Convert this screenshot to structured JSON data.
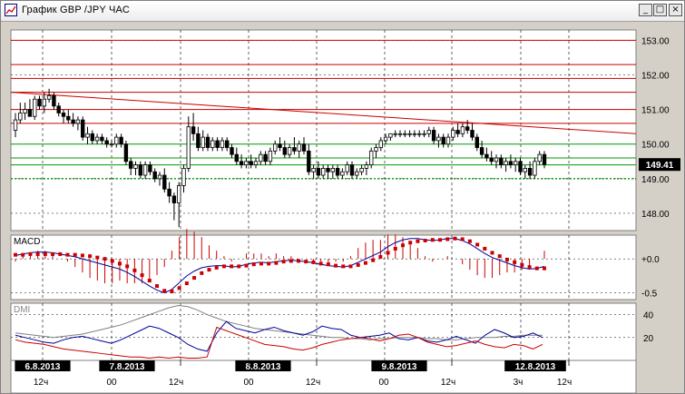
{
  "window": {
    "title": "График GBP /JPY  ЧАС",
    "minimize_glyph": "_",
    "maximize_glyph": "□",
    "close_glyph": "×"
  },
  "colors": {
    "background": "#ffffff",
    "frame": "#d4d0c8",
    "candle": "#000000",
    "resistance": "#cc0000",
    "support": "#009900",
    "macd_line": "#000099",
    "macd_signal": "#cc0000",
    "dmi_plus": "#000099",
    "dmi_minus": "#cc0000",
    "adx": "#808080"
  },
  "chart_data": [
    {
      "type": "candlestick",
      "title": "",
      "panel": "price",
      "ylim": [
        147.5,
        153.3
      ],
      "y_ticks": [
        "153.00",
        "152.00",
        "151.00",
        "150.00",
        "149.00",
        "148.00"
      ],
      "current_price_label": "149.41",
      "current_price": 149.41,
      "horizontal_levels": {
        "resistance": [
          153.0,
          152.3,
          151.9,
          151.5,
          151.0,
          150.6
        ],
        "support": [
          150.0,
          149.6,
          149.4
        ],
        "dotted_support": [
          149.0
        ]
      },
      "trendline": {
        "from_index": 0,
        "from_value": 151.5,
        "to_index": 118,
        "to_value": 150.3
      },
      "candles": [
        {
          "o": 150.4,
          "h": 150.9,
          "l": 150.2,
          "c": 150.7
        },
        {
          "o": 150.7,
          "h": 151.2,
          "l": 150.6,
          "c": 150.9
        },
        {
          "o": 150.9,
          "h": 151.2,
          "l": 150.7,
          "c": 151.0
        },
        {
          "o": 151.0,
          "h": 151.3,
          "l": 150.8,
          "c": 150.8
        },
        {
          "o": 150.8,
          "h": 151.4,
          "l": 150.7,
          "c": 151.3
        },
        {
          "o": 151.3,
          "h": 151.4,
          "l": 151.0,
          "c": 151.1
        },
        {
          "o": 151.1,
          "h": 151.5,
          "l": 150.9,
          "c": 151.3
        },
        {
          "o": 151.3,
          "h": 151.6,
          "l": 151.2,
          "c": 151.4
        },
        {
          "o": 151.4,
          "h": 151.5,
          "l": 151.0,
          "c": 151.1
        },
        {
          "o": 151.1,
          "h": 151.2,
          "l": 150.8,
          "c": 150.9
        },
        {
          "o": 150.9,
          "h": 151.0,
          "l": 150.6,
          "c": 150.8
        },
        {
          "o": 150.8,
          "h": 151.0,
          "l": 150.6,
          "c": 150.7
        },
        {
          "o": 150.7,
          "h": 150.9,
          "l": 150.5,
          "c": 150.6
        },
        {
          "o": 150.6,
          "h": 150.8,
          "l": 150.4,
          "c": 150.7
        },
        {
          "o": 150.7,
          "h": 150.8,
          "l": 150.1,
          "c": 150.2
        },
        {
          "o": 150.2,
          "h": 150.5,
          "l": 150.0,
          "c": 150.3
        },
        {
          "o": 150.3,
          "h": 150.4,
          "l": 150.0,
          "c": 150.1
        },
        {
          "o": 150.1,
          "h": 150.3,
          "l": 150.0,
          "c": 150.2
        },
        {
          "o": 150.2,
          "h": 150.3,
          "l": 150.0,
          "c": 150.1
        },
        {
          "o": 150.1,
          "h": 150.2,
          "l": 149.9,
          "c": 150.0
        },
        {
          "o": 150.0,
          "h": 150.1,
          "l": 149.9,
          "c": 150.0
        },
        {
          "o": 150.0,
          "h": 150.3,
          "l": 149.9,
          "c": 150.2
        },
        {
          "o": 150.2,
          "h": 150.3,
          "l": 149.9,
          "c": 150.0
        },
        {
          "o": 150.0,
          "h": 150.1,
          "l": 149.4,
          "c": 149.5
        },
        {
          "o": 149.5,
          "h": 149.6,
          "l": 149.1,
          "c": 149.3
        },
        {
          "o": 149.3,
          "h": 149.5,
          "l": 149.1,
          "c": 149.4
        },
        {
          "o": 149.4,
          "h": 149.5,
          "l": 149.0,
          "c": 149.1
        },
        {
          "o": 149.1,
          "h": 149.5,
          "l": 149.0,
          "c": 149.4
        },
        {
          "o": 149.4,
          "h": 149.5,
          "l": 149.1,
          "c": 149.2
        },
        {
          "o": 149.2,
          "h": 149.3,
          "l": 148.9,
          "c": 149.0
        },
        {
          "o": 149.0,
          "h": 149.2,
          "l": 148.8,
          "c": 149.1
        },
        {
          "o": 149.1,
          "h": 149.3,
          "l": 148.6,
          "c": 148.7
        },
        {
          "o": 148.7,
          "h": 148.9,
          "l": 148.3,
          "c": 148.5
        },
        {
          "o": 148.5,
          "h": 148.6,
          "l": 147.8,
          "c": 148.3
        },
        {
          "o": 148.3,
          "h": 148.9,
          "l": 147.6,
          "c": 148.8
        },
        {
          "o": 148.8,
          "h": 149.4,
          "l": 148.6,
          "c": 149.3
        },
        {
          "o": 149.3,
          "h": 150.8,
          "l": 149.2,
          "c": 150.5
        },
        {
          "o": 150.5,
          "h": 150.9,
          "l": 150.1,
          "c": 150.3
        },
        {
          "o": 150.3,
          "h": 150.5,
          "l": 149.8,
          "c": 149.9
        },
        {
          "o": 149.9,
          "h": 150.4,
          "l": 149.8,
          "c": 150.2
        },
        {
          "o": 150.2,
          "h": 150.3,
          "l": 149.8,
          "c": 149.9
        },
        {
          "o": 149.9,
          "h": 150.2,
          "l": 149.8,
          "c": 150.1
        },
        {
          "o": 150.1,
          "h": 150.2,
          "l": 149.8,
          "c": 149.9
        },
        {
          "o": 149.9,
          "h": 150.2,
          "l": 149.8,
          "c": 150.1
        },
        {
          "o": 150.1,
          "h": 150.2,
          "l": 149.8,
          "c": 149.9
        },
        {
          "o": 149.9,
          "h": 150.0,
          "l": 149.6,
          "c": 149.7
        },
        {
          "o": 149.7,
          "h": 149.9,
          "l": 149.4,
          "c": 149.5
        },
        {
          "o": 149.5,
          "h": 149.7,
          "l": 149.3,
          "c": 149.4
        },
        {
          "o": 149.4,
          "h": 149.6,
          "l": 149.3,
          "c": 149.5
        },
        {
          "o": 149.5,
          "h": 149.7,
          "l": 149.3,
          "c": 149.4
        },
        {
          "o": 149.4,
          "h": 149.6,
          "l": 149.3,
          "c": 149.5
        },
        {
          "o": 149.5,
          "h": 149.8,
          "l": 149.4,
          "c": 149.7
        },
        {
          "o": 149.7,
          "h": 149.8,
          "l": 149.4,
          "c": 149.5
        },
        {
          "o": 149.5,
          "h": 149.9,
          "l": 149.4,
          "c": 149.8
        },
        {
          "o": 149.8,
          "h": 150.1,
          "l": 149.7,
          "c": 150.0
        },
        {
          "o": 150.0,
          "h": 150.2,
          "l": 149.8,
          "c": 149.9
        },
        {
          "o": 149.9,
          "h": 150.1,
          "l": 149.6,
          "c": 149.7
        },
        {
          "o": 149.7,
          "h": 150.0,
          "l": 149.6,
          "c": 149.9
        },
        {
          "o": 149.9,
          "h": 150.2,
          "l": 149.7,
          "c": 149.8
        },
        {
          "o": 149.8,
          "h": 150.1,
          "l": 149.6,
          "c": 150.0
        },
        {
          "o": 150.0,
          "h": 150.2,
          "l": 149.7,
          "c": 149.8
        },
        {
          "o": 149.8,
          "h": 150.0,
          "l": 149.1,
          "c": 149.2
        },
        {
          "o": 149.2,
          "h": 149.4,
          "l": 149.0,
          "c": 149.3
        },
        {
          "o": 149.3,
          "h": 149.5,
          "l": 149.0,
          "c": 149.1
        },
        {
          "o": 149.1,
          "h": 149.4,
          "l": 149.0,
          "c": 149.3
        },
        {
          "o": 149.3,
          "h": 149.4,
          "l": 149.0,
          "c": 149.2
        },
        {
          "o": 149.2,
          "h": 149.4,
          "l": 149.0,
          "c": 149.3
        },
        {
          "o": 149.3,
          "h": 149.4,
          "l": 149.0,
          "c": 149.1
        },
        {
          "o": 149.1,
          "h": 149.3,
          "l": 149.0,
          "c": 149.2
        },
        {
          "o": 149.2,
          "h": 149.5,
          "l": 149.1,
          "c": 149.4
        },
        {
          "o": 149.4,
          "h": 149.5,
          "l": 149.0,
          "c": 149.1
        },
        {
          "o": 149.1,
          "h": 149.3,
          "l": 149.0,
          "c": 149.2
        },
        {
          "o": 149.2,
          "h": 149.4,
          "l": 149.1,
          "c": 149.3
        },
        {
          "o": 149.3,
          "h": 149.5,
          "l": 149.1,
          "c": 149.4
        },
        {
          "o": 149.4,
          "h": 149.9,
          "l": 149.3,
          "c": 149.8
        },
        {
          "o": 149.8,
          "h": 150.0,
          "l": 149.6,
          "c": 149.9
        },
        {
          "o": 149.9,
          "h": 150.2,
          "l": 149.8,
          "c": 150.1
        },
        {
          "o": 150.1,
          "h": 150.3,
          "l": 150.0,
          "c": 150.2
        },
        {
          "o": 150.2,
          "h": 150.3,
          "l": 150.1,
          "c": 150.3
        },
        {
          "o": 150.3,
          "h": 150.4,
          "l": 150.2,
          "c": 150.3
        },
        {
          "o": 150.3,
          "h": 150.4,
          "l": 150.2,
          "c": 150.3
        },
        {
          "o": 150.3,
          "h": 150.4,
          "l": 150.2,
          "c": 150.3
        },
        {
          "o": 150.3,
          "h": 150.4,
          "l": 150.2,
          "c": 150.3
        },
        {
          "o": 150.3,
          "h": 150.4,
          "l": 150.2,
          "c": 150.3
        },
        {
          "o": 150.3,
          "h": 150.4,
          "l": 150.2,
          "c": 150.3
        },
        {
          "o": 150.3,
          "h": 150.4,
          "l": 150.2,
          "c": 150.3
        },
        {
          "o": 150.3,
          "h": 150.5,
          "l": 150.2,
          "c": 150.4
        },
        {
          "o": 150.4,
          "h": 150.5,
          "l": 150.0,
          "c": 150.1
        },
        {
          "o": 150.1,
          "h": 150.3,
          "l": 149.9,
          "c": 150.2
        },
        {
          "o": 150.2,
          "h": 150.3,
          "l": 149.9,
          "c": 150.0
        },
        {
          "o": 150.0,
          "h": 150.3,
          "l": 149.9,
          "c": 150.2
        },
        {
          "o": 150.2,
          "h": 150.5,
          "l": 150.1,
          "c": 150.4
        },
        {
          "o": 150.4,
          "h": 150.6,
          "l": 150.2,
          "c": 150.3
        },
        {
          "o": 150.3,
          "h": 150.6,
          "l": 150.2,
          "c": 150.5
        },
        {
          "o": 150.5,
          "h": 150.7,
          "l": 150.3,
          "c": 150.4
        },
        {
          "o": 150.4,
          "h": 150.6,
          "l": 150.1,
          "c": 150.2
        },
        {
          "o": 150.2,
          "h": 150.3,
          "l": 149.8,
          "c": 149.9
        },
        {
          "o": 149.9,
          "h": 150.1,
          "l": 149.6,
          "c": 149.7
        },
        {
          "o": 149.7,
          "h": 149.9,
          "l": 149.5,
          "c": 149.6
        },
        {
          "o": 149.6,
          "h": 149.8,
          "l": 149.4,
          "c": 149.5
        },
        {
          "o": 149.5,
          "h": 149.7,
          "l": 149.3,
          "c": 149.6
        },
        {
          "o": 149.6,
          "h": 149.7,
          "l": 149.3,
          "c": 149.4
        },
        {
          "o": 149.4,
          "h": 149.6,
          "l": 149.2,
          "c": 149.5
        },
        {
          "o": 149.5,
          "h": 149.7,
          "l": 149.3,
          "c": 149.4
        },
        {
          "o": 149.4,
          "h": 149.6,
          "l": 149.2,
          "c": 149.5
        },
        {
          "o": 149.5,
          "h": 149.6,
          "l": 149.1,
          "c": 149.2
        },
        {
          "o": 149.2,
          "h": 149.4,
          "l": 149.0,
          "c": 149.3
        },
        {
          "o": 149.3,
          "h": 149.5,
          "l": 149.0,
          "c": 149.1
        },
        {
          "o": 149.1,
          "h": 149.6,
          "l": 149.0,
          "c": 149.5
        },
        {
          "o": 149.5,
          "h": 149.8,
          "l": 149.4,
          "c": 149.7
        },
        {
          "o": 149.7,
          "h": 149.8,
          "l": 149.3,
          "c": 149.41
        }
      ]
    },
    {
      "type": "line",
      "panel": "macd",
      "label": "MACD",
      "ylim": [
        -0.6,
        0.35
      ],
      "y_ticks": [
        "+0.0",
        "-0.5"
      ],
      "macd": [
        0.05,
        0.07,
        0.09,
        0.1,
        0.1,
        0.09,
        0.07,
        0.05,
        0.03,
        0.0,
        -0.03,
        -0.06,
        -0.09,
        -0.12,
        -0.15,
        -0.2,
        -0.26,
        -0.33,
        -0.4,
        -0.46,
        -0.5,
        -0.45,
        -0.35,
        -0.25,
        -0.18,
        -0.13,
        -0.11,
        -0.1,
        -0.1,
        -0.12,
        -0.11,
        -0.08,
        -0.06,
        -0.05,
        -0.06,
        -0.04,
        -0.03,
        -0.02,
        -0.03,
        -0.04,
        -0.06,
        -0.08,
        -0.1,
        -0.11,
        -0.12,
        -0.1,
        -0.05,
        0.0,
        0.05,
        0.1,
        0.18,
        0.24,
        0.28,
        0.3,
        0.3,
        0.28,
        0.27,
        0.28,
        0.3,
        0.3,
        0.27,
        0.22,
        0.15,
        0.08,
        0.02,
        -0.02,
        -0.06,
        -0.1,
        -0.13,
        -0.15,
        -0.14,
        -0.11
      ],
      "signal": [
        0.06,
        0.06,
        0.07,
        0.07,
        0.07,
        0.07,
        0.07,
        0.06,
        0.06,
        0.05,
        0.04,
        0.02,
        0.0,
        -0.03,
        -0.07,
        -0.11,
        -0.17,
        -0.24,
        -0.32,
        -0.4,
        -0.47,
        -0.48,
        -0.43,
        -0.36,
        -0.28,
        -0.21,
        -0.16,
        -0.13,
        -0.11,
        -0.11,
        -0.11,
        -0.1,
        -0.08,
        -0.07,
        -0.07,
        -0.06,
        -0.04,
        -0.03,
        -0.03,
        -0.04,
        -0.05,
        -0.07,
        -0.08,
        -0.1,
        -0.11,
        -0.11,
        -0.09,
        -0.06,
        -0.02,
        0.03,
        0.09,
        0.15,
        0.2,
        0.24,
        0.26,
        0.27,
        0.28,
        0.28,
        0.29,
        0.3,
        0.29,
        0.26,
        0.21,
        0.15,
        0.09,
        0.04,
        -0.01,
        -0.05,
        -0.09,
        -0.12,
        -0.14,
        -0.14
      ]
    },
    {
      "type": "line",
      "panel": "dmi",
      "label": "DMI",
      "ylim": [
        0,
        50
      ],
      "y_ticks": [
        "40",
        "20"
      ],
      "di_plus": [
        22,
        20,
        18,
        16,
        15,
        18,
        20,
        21,
        19,
        17,
        15,
        18,
        22,
        26,
        30,
        28,
        24,
        20,
        14,
        10,
        8,
        24,
        34,
        28,
        26,
        24,
        27,
        29,
        26,
        24,
        22,
        25,
        30,
        28,
        27,
        22,
        20,
        21,
        22,
        24,
        19,
        18,
        20,
        17,
        16,
        18,
        21,
        18,
        15,
        22,
        27,
        24,
        20,
        21,
        24,
        20
      ],
      "di_minus": [
        18,
        16,
        15,
        14,
        12,
        10,
        9,
        8,
        7,
        6,
        5,
        4,
        3,
        3,
        2,
        3,
        2,
        3,
        2,
        2,
        3,
        29,
        26,
        23,
        20,
        17,
        14,
        13,
        12,
        10,
        9,
        11,
        14,
        16,
        18,
        19,
        20,
        19,
        17,
        19,
        22,
        23,
        20,
        16,
        14,
        12,
        13,
        15,
        17,
        14,
        12,
        11,
        14,
        13,
        10,
        14
      ],
      "adx": [
        24,
        23,
        22,
        21,
        20,
        21,
        22,
        23,
        25,
        27,
        29,
        31,
        34,
        37,
        40,
        43,
        46,
        48,
        47,
        44,
        40,
        37,
        34,
        32,
        30,
        28,
        27,
        26,
        25,
        24,
        23,
        22,
        21,
        20,
        20,
        19,
        19,
        18,
        19,
        19,
        20,
        20,
        20,
        19,
        19,
        18,
        18,
        19,
        20,
        20,
        20,
        21,
        21,
        22,
        22,
        22
      ]
    }
  ],
  "time_axis": {
    "date_labels": [
      "6.8.2013",
      "7.8.2013",
      "8.8.2013",
      "9.8.2013",
      "12.8.2013"
    ],
    "hour_labels": [
      "12ч",
      "00",
      "12ч",
      "00",
      "12ч",
      "00",
      "12ч",
      "3ч",
      "12ч"
    ]
  }
}
